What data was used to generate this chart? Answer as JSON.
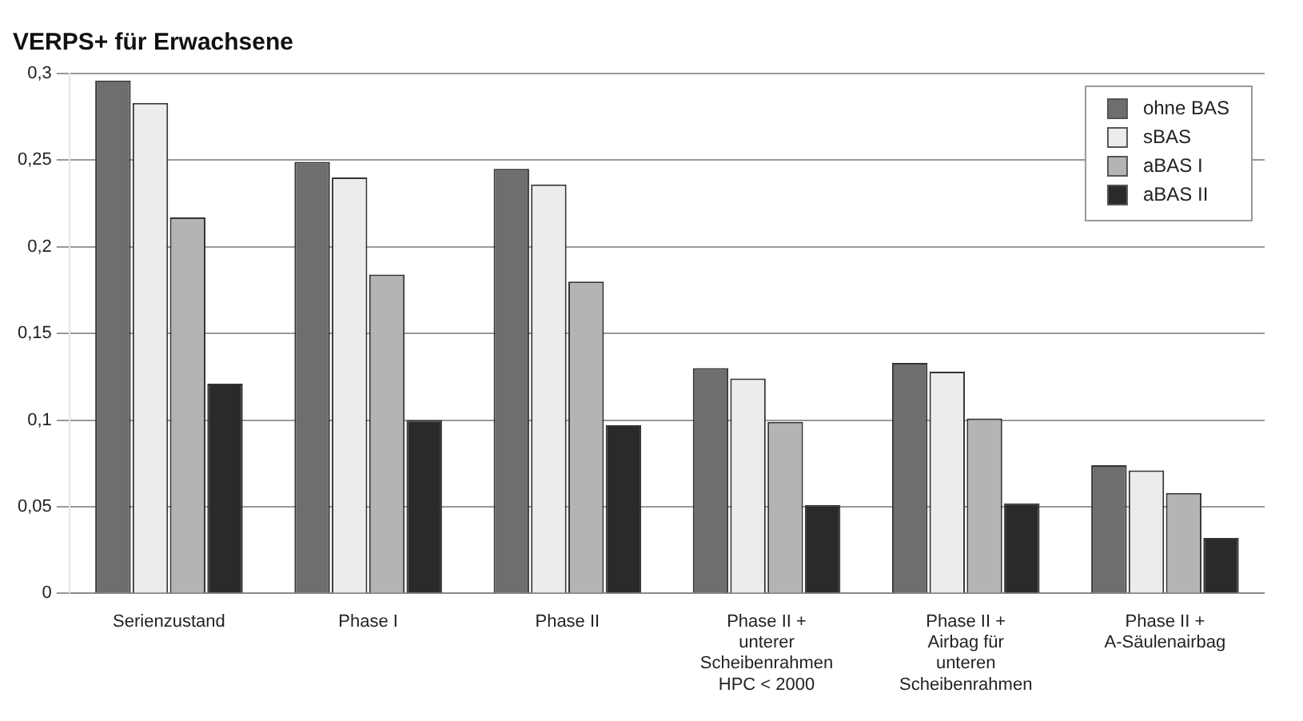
{
  "chart_data": {
    "type": "bar",
    "title": "VERPS+ für Erwachsene",
    "categories": [
      "Serienzustand",
      "Phase I",
      "Phase II",
      "Phase II + unterer Scheibenrahmen HPC < 2000",
      "Phase II + Airbag für unteren Scheibenrahmen",
      "Phase II + A-Säulenairbag"
    ],
    "series": [
      {
        "name": "ohne BAS",
        "color": "#6e6e6e",
        "values": [
          0.296,
          0.249,
          0.245,
          0.13,
          0.133,
          0.074
        ]
      },
      {
        "name": "sBAS",
        "color": "#ececec",
        "values": [
          0.283,
          0.24,
          0.236,
          0.124,
          0.128,
          0.071
        ]
      },
      {
        "name": "aBAS I",
        "color": "#b4b4b4",
        "values": [
          0.217,
          0.184,
          0.18,
          0.099,
          0.101,
          0.058
        ]
      },
      {
        "name": "aBAS II",
        "color": "#2a2a2a",
        "values": [
          0.121,
          0.1,
          0.097,
          0.051,
          0.052,
          0.032
        ]
      }
    ],
    "ylim": [
      0,
      0.3
    ],
    "yticks": [
      0,
      {
        "value": 0.05,
        "label": "0,05"
      },
      {
        "value": 0.1,
        "label": "0,1"
      },
      {
        "value": 0.15,
        "label": "0,15"
      },
      {
        "value": 0.2,
        "label": "0,2"
      },
      {
        "value": 0.25,
        "label": "0,25"
      },
      {
        "value": 0.3,
        "label": "0,3"
      }
    ],
    "grid": "y",
    "legend": "top right"
  }
}
